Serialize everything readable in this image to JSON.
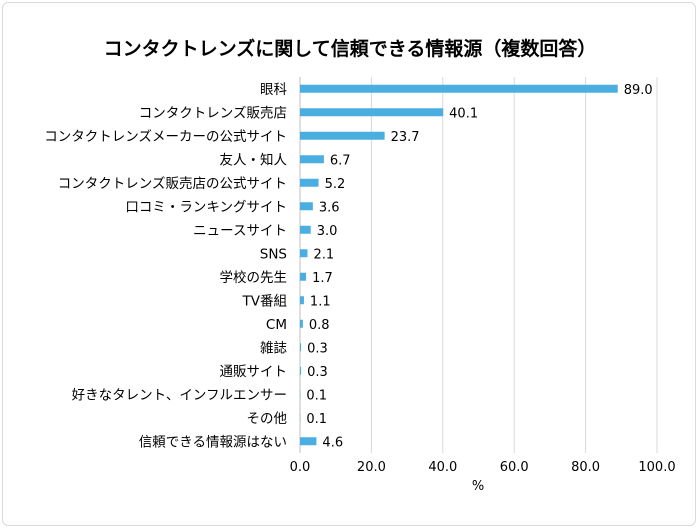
{
  "chart_data": {
    "type": "bar",
    "orientation": "horizontal",
    "title": "コンタクトレンズに関して信頼できる情報源（複数回答）",
    "xlabel": "%",
    "ylabel": "",
    "xlim": [
      0,
      100
    ],
    "xticks": [
      "0.0",
      "20.0",
      "40.0",
      "60.0",
      "80.0",
      "100.0"
    ],
    "grid": true,
    "legend": "none",
    "bar_color": "#4aafe0",
    "categories": [
      "眼科",
      "コンタクトレンズ販売店",
      "コンタクトレンズメーカーの公式サイト",
      "友人・知人",
      "コンタクトレンズ販売店の公式サイト",
      "口コミ・ランキングサイト",
      "ニュースサイト",
      "SNS",
      "学校の先生",
      "TV番組",
      "CM",
      "雑誌",
      "通販サイト",
      "好きなタレント、インフルエンサー",
      "その他",
      "信頼できる情報源はない"
    ],
    "values": [
      89.0,
      40.1,
      23.7,
      6.7,
      5.2,
      3.6,
      3.0,
      2.1,
      1.7,
      1.1,
      0.8,
      0.3,
      0.3,
      0.1,
      0.1,
      4.6
    ],
    "value_labels": [
      "89.0",
      "40.1",
      "23.7",
      "6.7",
      "5.2",
      "3.6",
      "3.0",
      "2.1",
      "1.7",
      "1.1",
      "0.8",
      "0.3",
      "0.3",
      "0.1",
      "0.1",
      "4.6"
    ]
  }
}
